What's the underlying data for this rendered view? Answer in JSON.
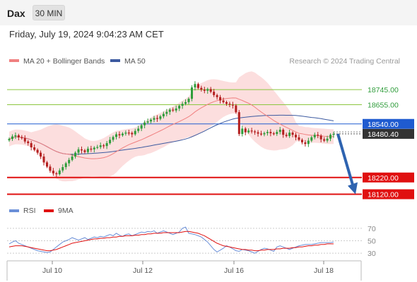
{
  "header": {
    "title": "Dax",
    "interval": "30 MIN",
    "timestamp": "Friday, July 19, 2024 9:04:23 AM CET"
  },
  "legend": {
    "ma20_label": "MA 20 + Bollinger Bands",
    "ma50_label": "MA 50",
    "copyright": "Research © 2024 Trading Central",
    "rsi_label": "RSI",
    "ma9_label": "9MA"
  },
  "colors": {
    "up": "#2e9c3a",
    "down": "#b31e1e",
    "ma20": "#f08080",
    "bollinger_fill": "#fbd3d3",
    "ma50": "#3c5aa0",
    "resistance": "#8cc63f",
    "pivot": "#1f5bd0",
    "support": "#e01010",
    "forecast_arrow": "#2e63b0",
    "rsi": "#6a8fd8",
    "rsi_ma": "#e01010"
  },
  "chart_data": [
    {
      "type": "candlestick",
      "title": "Dax",
      "x_ticks": [
        "Jul 10",
        "Jul 12",
        "Jul 16",
        "Jul 18"
      ],
      "ylim": [
        18080,
        18880
      ],
      "price_levels": [
        {
          "label": "18745.00",
          "value": 18745,
          "role": "resistance"
        },
        {
          "label": "18655.00",
          "value": 18655,
          "role": "resistance"
        },
        {
          "label": "18540.00",
          "value": 18540,
          "role": "pivot"
        },
        {
          "label": "18480.40",
          "value": 18480.4,
          "role": "last"
        },
        {
          "label": "18220.00",
          "value": 18220,
          "role": "support"
        },
        {
          "label": "18120.00",
          "value": 18120,
          "role": "support"
        }
      ],
      "forecast": {
        "from": 18480.4,
        "to": 18120
      },
      "close": [
        18450,
        18465,
        18472,
        18460,
        18455,
        18435,
        18425,
        18400,
        18385,
        18368,
        18345,
        18310,
        18285,
        18260,
        18245,
        18240,
        18262,
        18282,
        18305,
        18325,
        18345,
        18368,
        18388,
        18382,
        18372,
        18392,
        18388,
        18398,
        18402,
        18412,
        18408,
        18425,
        18445,
        18462,
        18478,
        18472,
        18482,
        18488,
        18486,
        18478,
        18498,
        18512,
        18532,
        18548,
        18555,
        18565,
        18575,
        18570,
        18585,
        18600,
        18612,
        18625,
        18620,
        18632,
        18648,
        18660,
        18670,
        18690,
        18758,
        18778,
        18755,
        18745,
        18738,
        18748,
        18732,
        18712,
        18700,
        18680,
        18670,
        18660,
        18655,
        18650,
        18610,
        18480,
        18512,
        18490,
        18500,
        18495,
        18490,
        18482,
        18478,
        18485,
        18492,
        18484,
        18480,
        18492,
        18505,
        18475,
        18468,
        18488,
        18475,
        18460,
        18445,
        18430,
        18420,
        18440,
        18460,
        18475,
        18470,
        18448,
        18440,
        18452,
        18475,
        18480
      ],
      "open_high_low": "per-bar open is previous close; highs/lows extend slightly beyond body"
    },
    {
      "type": "line",
      "title": "RSI",
      "ylim": [
        20,
        80
      ],
      "y_ticks": [
        70,
        50,
        30
      ],
      "series": [
        {
          "name": "RSI",
          "values": [
            45,
            48,
            50,
            46,
            44,
            42,
            40,
            38,
            36,
            34,
            33,
            32,
            31,
            32,
            36,
            40,
            44,
            48,
            50,
            52,
            55,
            53,
            51,
            53,
            55,
            52,
            54,
            56,
            55,
            57,
            56,
            58,
            60,
            58,
            62,
            59,
            57,
            60,
            61,
            58,
            60,
            62,
            64,
            63,
            65,
            64,
            66,
            62,
            64,
            66,
            64,
            62,
            60,
            62,
            64,
            70,
            72,
            62,
            61,
            60,
            58,
            56,
            52,
            48,
            42,
            36,
            32,
            35,
            38,
            42,
            40,
            37,
            34,
            33,
            36,
            35,
            34,
            32,
            30,
            33,
            36,
            38,
            37,
            35,
            33,
            40,
            42,
            40,
            38,
            36,
            38,
            40,
            42,
            43,
            44,
            44,
            44,
            45,
            46,
            47,
            47,
            47,
            47,
            48
          ]
        },
        {
          "name": "9MA",
          "values": [
            40,
            41,
            42,
            42,
            42,
            41,
            40,
            39,
            38,
            37,
            36,
            35,
            34,
            34,
            35,
            36,
            38,
            40,
            42,
            44,
            46,
            47,
            48,
            49,
            50,
            51,
            52,
            53,
            53,
            54,
            54,
            55,
            55,
            56,
            56,
            57,
            57,
            58,
            58,
            58,
            59,
            59,
            60,
            60,
            61,
            61,
            62,
            62,
            62,
            63,
            63,
            63,
            63,
            63,
            63,
            64,
            65,
            65,
            64,
            63,
            62,
            60,
            58,
            55,
            52,
            49,
            46,
            44,
            42,
            41,
            40,
            39,
            38,
            37,
            36,
            36,
            35,
            35,
            34,
            34,
            35,
            35,
            36,
            36,
            36,
            37,
            37,
            38,
            38,
            38,
            39,
            39,
            40,
            40,
            41,
            42,
            42,
            43,
            43,
            44,
            44,
            45,
            45,
            45
          ]
        }
      ]
    }
  ]
}
